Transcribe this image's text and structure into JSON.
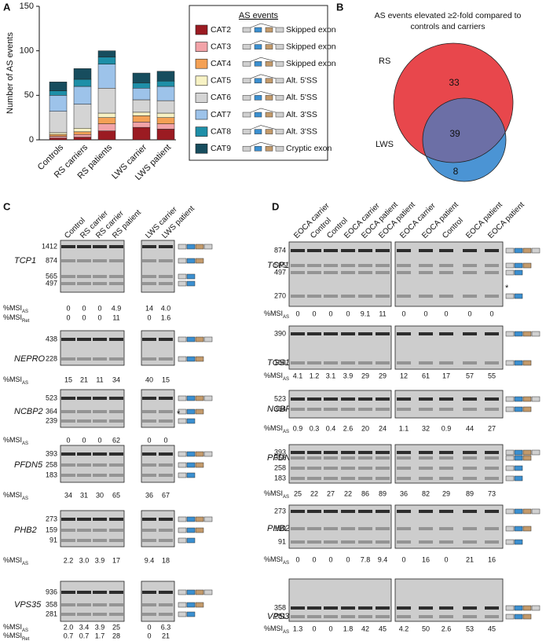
{
  "panel_labels": [
    "A",
    "B",
    "C",
    "D"
  ],
  "chart_data": {
    "type": "bar",
    "stacked": true,
    "ylabel": "Number of AS events",
    "categories": [
      "Controls",
      "RS carriers",
      "RS patients",
      "LWS carrier",
      "LWS patient"
    ],
    "ylim": [
      0,
      150
    ],
    "yticks": [
      0,
      50,
      100,
      150
    ],
    "legend_title": "AS events",
    "series": [
      {
        "name": "CAT2",
        "event": "Skipped exon",
        "color": "#9b1b22",
        "values": [
          2,
          3,
          10,
          14,
          12
        ]
      },
      {
        "name": "CAT3",
        "event": "Skipped exon",
        "color": "#f2a3a8",
        "values": [
          2,
          3,
          8,
          6,
          6
        ]
      },
      {
        "name": "CAT4",
        "event": "Skipped exon",
        "color": "#f4a155",
        "values": [
          2,
          3,
          7,
          7,
          7
        ]
      },
      {
        "name": "CAT5",
        "event": "Alt. 5'SS",
        "color": "#f7f2c4",
        "values": [
          2,
          4,
          5,
          4,
          5
        ]
      },
      {
        "name": "CAT6",
        "event": "Alt. 5'SS",
        "color": "#d4d4d4",
        "values": [
          24,
          27,
          28,
          14,
          14
        ]
      },
      {
        "name": "CAT7",
        "event": "Alt. 3'SS",
        "color": "#9dc3ea",
        "values": [
          18,
          20,
          27,
          13,
          16
        ]
      },
      {
        "name": "CAT8",
        "event": "Alt. 3'SS",
        "color": "#1e8fa8",
        "values": [
          5,
          8,
          8,
          6,
          6
        ]
      },
      {
        "name": "CAT9",
        "event": "Cryptic exon",
        "color": "#174d5e",
        "values": [
          10,
          12,
          7,
          11,
          11
        ]
      }
    ]
  },
  "venn": {
    "title": "AS events elevated ≥2-fold compared to controls and carriers",
    "sets": [
      {
        "name": "RS",
        "color": "#e8474c"
      },
      {
        "name": "LWS",
        "color": "#4b94d4"
      }
    ],
    "overlap_color": "#6c6fa6",
    "only_first": 33,
    "both": 39,
    "only_second": 8
  },
  "gels": [
    {
      "groups": [
        [
          "Control",
          "RS carrier",
          "RS carrier",
          "RS patient"
        ],
        [
          "LWS carrier",
          "LWS patient"
        ]
      ],
      "genes": [
        {
          "name": "TCP1",
          "markers": [
            1412,
            874,
            565,
            497
          ],
          "rows": [
            {
              "label": "%MSI",
              "sub": "AS",
              "values": [
                [
                  "0",
                  "0",
                  "0",
                  "4.9"
                ],
                [
                  "14",
                  "4.0"
                ]
              ]
            },
            {
              "label": "%MSI",
              "sub": "Ret",
              "values": [
                [
                  "0",
                  "0",
                  "0",
                  "11"
                ],
                [
                  "0",
                  "1.6"
                ]
              ]
            }
          ]
        },
        {
          "name": "NEPRO",
          "markers": [
            438,
            228
          ],
          "rows": [
            {
              "label": "%MSI",
              "sub": "AS",
              "values": [
                [
                  "15",
                  "21",
                  "11",
                  "34"
                ],
                [
                  "40",
                  "15"
                ]
              ]
            }
          ]
        },
        {
          "name": "NCBP2",
          "markers": [
            523,
            364,
            239
          ],
          "note": "*",
          "rows": [
            {
              "label": "%MSI",
              "sub": "AS",
              "values": [
                [
                  "0",
                  "0",
                  "0",
                  "62"
                ],
                [
                  "0",
                  "0"
                ]
              ]
            }
          ]
        },
        {
          "name": "PFDN5",
          "markers": [
            393,
            258,
            183
          ],
          "rows": [
            {
              "label": "%MSI",
              "sub": "AS",
              "values": [
                [
                  "34",
                  "31",
                  "30",
                  "65"
                ],
                [
                  "36",
                  "67"
                ]
              ]
            }
          ]
        },
        {
          "name": "PHB2",
          "markers": [
            273,
            159,
            91
          ],
          "rows": [
            {
              "label": "%MSI",
              "sub": "AS",
              "values": [
                [
                  "2.2",
                  "3.0",
                  "3.9",
                  "17"
                ],
                [
                  "9.4",
                  "18"
                ]
              ]
            }
          ]
        },
        {
          "name": "VPS35",
          "markers": [
            936,
            358,
            281
          ],
          "rows": [
            {
              "label": "%MSI",
              "sub": "AS",
              "values": [
                [
                  "2.0",
                  "3.4",
                  "3.9",
                  "25"
                ],
                [
                  "0",
                  "6.3"
                ]
              ]
            },
            {
              "label": "%MSI",
              "sub": "Ret",
              "values": [
                [
                  "0.7",
                  "0.7",
                  "1.7",
                  "28"
                ],
                [
                  "0",
                  "21"
                ]
              ]
            }
          ]
        }
      ]
    },
    {
      "groups": [
        [
          "EOCA carrier",
          "Control",
          "Control",
          "EOCA carrier",
          "EOCA patient",
          "EOCA patient"
        ],
        [
          "EOCA carrier",
          "EOCA patient",
          "Control",
          "EOCA patient",
          "EOCA patient"
        ]
      ],
      "genes": [
        {
          "name": "TCP1",
          "markers": [
            874,
            565,
            497,
            270
          ],
          "note": "*",
          "rows": [
            {
              "label": "%MSI",
              "sub": "AS",
              "values": [
                [
                  "0",
                  "0",
                  "0",
                  "0",
                  "9.1",
                  "11"
                ],
                [
                  "0",
                  "0",
                  "0",
                  "0",
                  "0"
                ]
              ]
            }
          ]
        },
        {
          "name": "TGS1",
          "markers": [
            390,
            158
          ],
          "rows": [
            {
              "label": "%MSI",
              "sub": "AS",
              "values": [
                [
                  "4.1",
                  "1.2",
                  "3.1",
                  "3.9",
                  "29",
                  "29"
                ],
                [
                  "12",
                  "61",
                  "17",
                  "57",
                  "55"
                ]
              ]
            }
          ]
        },
        {
          "name": "NCBP2",
          "markers": [
            523,
            364
          ],
          "rows": [
            {
              "label": "%MSI",
              "sub": "AS",
              "values": [
                [
                  "0.9",
                  "0.3",
                  "0.4",
                  "2.6",
                  "20",
                  "24"
                ],
                [
                  "1.1",
                  "32",
                  "0.9",
                  "44",
                  "27"
                ]
              ]
            }
          ]
        },
        {
          "name": "PFDN5",
          "markers": [
            393,
            356,
            258,
            183
          ],
          "rows": [
            {
              "label": "%MSI",
              "sub": "AS",
              "values": [
                [
                  "25",
                  "22",
                  "27",
                  "22",
                  "86",
                  "89"
                ],
                [
                  "36",
                  "82",
                  "29",
                  "89",
                  "73"
                ]
              ]
            }
          ]
        },
        {
          "name": "PHB2",
          "markers": [
            273,
            159,
            91
          ],
          "rows": [
            {
              "label": "%MSI",
              "sub": "AS",
              "values": [
                [
                  "0",
                  "0",
                  "0",
                  "0",
                  "7.8",
                  "9.4"
                ],
                [
                  "0",
                  "16",
                  "0",
                  "21",
                  "16"
                ]
              ]
            }
          ]
        },
        {
          "name": "VPS35",
          "markers": [
            358,
            281
          ],
          "rows": [
            {
              "label": "%MSI",
              "sub": "AS",
              "values": [
                [
                  "1.3",
                  "0",
                  "0",
                  "1.8",
                  "42",
                  "45"
                ],
                [
                  "4.2",
                  "50",
                  "2.6",
                  "53",
                  "45"
                ]
              ]
            }
          ]
        }
      ]
    }
  ]
}
